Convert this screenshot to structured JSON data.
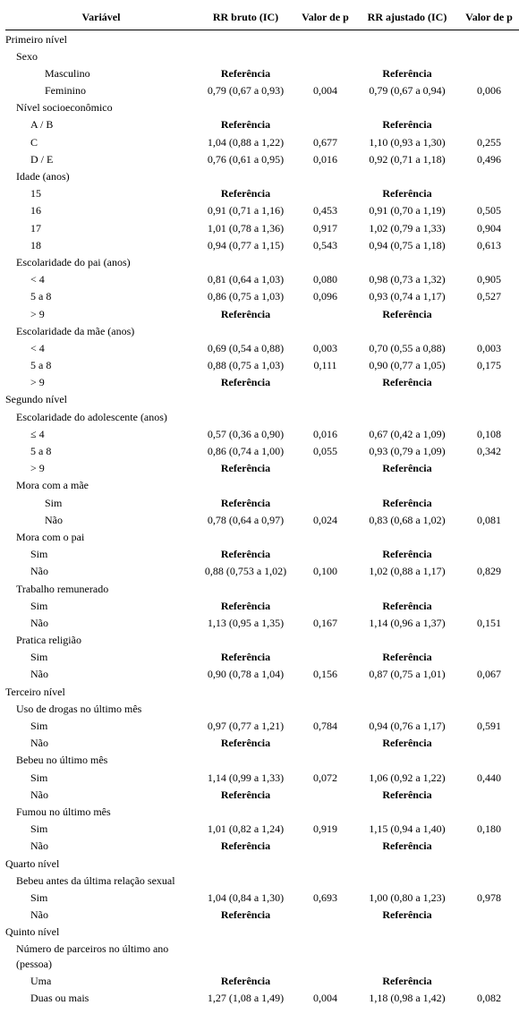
{
  "headers": {
    "variable": "Variável",
    "rr_crude": "RR bruto (IC)",
    "p_crude": "Valor de p",
    "rr_adj": "RR ajustado (IC)",
    "p_adj": "Valor de p"
  },
  "ref_label": "Referência",
  "rows": [
    {
      "type": "section",
      "indent": 0,
      "label": "Primeiro nível"
    },
    {
      "type": "group",
      "indent": 1,
      "label": "Sexo"
    },
    {
      "type": "ref",
      "indent": 3,
      "label": "Masculino"
    },
    {
      "type": "data",
      "indent": 3,
      "label": "Feminino",
      "rr_c": "0,79 (0,67 a 0,93)",
      "p_c": "0,004",
      "rr_a": "0,79 (0,67 a 0,94)",
      "p_a": "0,006"
    },
    {
      "type": "group",
      "indent": 1,
      "label": "Nível socioeconômico"
    },
    {
      "type": "ref",
      "indent": 2,
      "label": "A / B"
    },
    {
      "type": "data",
      "indent": 2,
      "label": "C",
      "rr_c": "1,04 (0,88 a 1,22)",
      "p_c": "0,677",
      "rr_a": "1,10 (0,93 a 1,30)",
      "p_a": "0,255"
    },
    {
      "type": "data",
      "indent": 2,
      "label": "D / E",
      "rr_c": "0,76 (0,61 a 0,95)",
      "p_c": "0,016",
      "rr_a": "0,92 (0,71 a 1,18)",
      "p_a": "0,496"
    },
    {
      "type": "group",
      "indent": 1,
      "label": "Idade (anos)"
    },
    {
      "type": "ref",
      "indent": 2,
      "label": "15"
    },
    {
      "type": "data",
      "indent": 2,
      "label": "16",
      "rr_c": "0,91 (0,71 a 1,16)",
      "p_c": "0,453",
      "rr_a": "0,91 (0,70 a 1,19)",
      "p_a": "0,505"
    },
    {
      "type": "data",
      "indent": 2,
      "label": "17",
      "rr_c": "1,01 (0,78 a 1,36)",
      "p_c": "0,917",
      "rr_a": "1,02 (0,79 a 1,33)",
      "p_a": "0,904"
    },
    {
      "type": "data",
      "indent": 2,
      "label": "18",
      "rr_c": "0,94 (0,77 a 1,15)",
      "p_c": "0,543",
      "rr_a": "0,94 (0,75 a 1,18)",
      "p_a": "0,613"
    },
    {
      "type": "group",
      "indent": 1,
      "label": "Escolaridade do pai (anos)"
    },
    {
      "type": "data",
      "indent": 2,
      "label": "< 4",
      "rr_c": "0,81 (0,64 a 1,03)",
      "p_c": "0,080",
      "rr_a": "0,98 (0,73 a 1,32)",
      "p_a": "0,905"
    },
    {
      "type": "data",
      "indent": 2,
      "label": "5 a 8",
      "rr_c": "0,86 (0,75 a 1,03)",
      "p_c": "0,096",
      "rr_a": "0,93 (0,74 a 1,17)",
      "p_a": "0,527"
    },
    {
      "type": "ref",
      "indent": 2,
      "label": "> 9"
    },
    {
      "type": "group",
      "indent": 1,
      "label": "Escolaridade da mãe (anos)"
    },
    {
      "type": "data",
      "indent": 2,
      "label": "< 4",
      "rr_c": "0,69 (0,54 a 0,88)",
      "p_c": "0,003",
      "rr_a": "0,70 (0,55 a 0,88)",
      "p_a": "0,003"
    },
    {
      "type": "data",
      "indent": 2,
      "label": "5 a 8",
      "rr_c": "0,88 (0,75 a 1,03)",
      "p_c": "0,111",
      "rr_a": "0,90 (0,77 a 1,05)",
      "p_a": "0,175"
    },
    {
      "type": "ref",
      "indent": 2,
      "label": "> 9"
    },
    {
      "type": "section",
      "indent": 0,
      "label": "Segundo nível"
    },
    {
      "type": "group",
      "indent": 1,
      "label": "Escolaridade do adolescente (anos)"
    },
    {
      "type": "data",
      "indent": 2,
      "label": "≤ 4",
      "rr_c": "0,57 (0,36 a 0,90)",
      "p_c": "0,016",
      "rr_a": "0,67 (0,42 a 1,09)",
      "p_a": "0,108"
    },
    {
      "type": "data",
      "indent": 2,
      "label": "5 a 8",
      "rr_c": "0,86 (0,74 a 1,00)",
      "p_c": "0,055",
      "rr_a": "0,93 (0,79 a 1,09)",
      "p_a": "0,342"
    },
    {
      "type": "ref",
      "indent": 2,
      "label": "> 9"
    },
    {
      "type": "group",
      "indent": 1,
      "label": "Mora com a mãe"
    },
    {
      "type": "ref",
      "indent": 3,
      "label": "Sim"
    },
    {
      "type": "data",
      "indent": 3,
      "label": "Não",
      "rr_c": "0,78 (0,64 a 0,97)",
      "p_c": "0,024",
      "rr_a": "0,83 (0,68 a 1,02)",
      "p_a": "0,081"
    },
    {
      "type": "group",
      "indent": 1,
      "label": "Mora com o pai"
    },
    {
      "type": "ref",
      "indent": 2,
      "label": "Sim"
    },
    {
      "type": "data",
      "indent": 2,
      "label": "Não",
      "rr_c": "0,88 (0,753 a 1,02)",
      "p_c": "0,100",
      "rr_a": "1,02 (0,88 a 1,17)",
      "p_a": "0,829"
    },
    {
      "type": "group",
      "indent": 1,
      "label": "Trabalho remunerado"
    },
    {
      "type": "ref",
      "indent": 2,
      "label": "Sim"
    },
    {
      "type": "data",
      "indent": 2,
      "label": "Não",
      "rr_c": "1,13 (0,95 a 1,35)",
      "p_c": "0,167",
      "rr_a": "1,14 (0,96 a 1,37)",
      "p_a": "0,151"
    },
    {
      "type": "group",
      "indent": 1,
      "label": "Pratica religião"
    },
    {
      "type": "ref",
      "indent": 2,
      "label": "Sim"
    },
    {
      "type": "data",
      "indent": 2,
      "label": "Não",
      "rr_c": "0,90 (0,78 a 1,04)",
      "p_c": "0,156",
      "rr_a": "0,87 (0,75 a 1,01)",
      "p_a": "0,067"
    },
    {
      "type": "section",
      "indent": 0,
      "label": "Terceiro nível"
    },
    {
      "type": "group",
      "indent": 1,
      "label": "Uso de drogas no último mês"
    },
    {
      "type": "data",
      "indent": 2,
      "label": "Sim",
      "rr_c": "0,97 (0,77 a 1,21)",
      "p_c": "0,784",
      "rr_a": "0,94 (0,76 a 1,17)",
      "p_a": "0,591"
    },
    {
      "type": "ref",
      "indent": 2,
      "label": "Não"
    },
    {
      "type": "group",
      "indent": 1,
      "label": "Bebeu no último mês"
    },
    {
      "type": "data",
      "indent": 2,
      "label": "Sim",
      "rr_c": "1,14 (0,99 a 1,33)",
      "p_c": "0,072",
      "rr_a": "1,06 (0,92 a 1,22)",
      "p_a": "0,440"
    },
    {
      "type": "ref",
      "indent": 2,
      "label": "Não"
    },
    {
      "type": "group",
      "indent": 1,
      "label": "Fumou no último mês"
    },
    {
      "type": "data",
      "indent": 2,
      "label": "Sim",
      "rr_c": "1,01 (0,82 a 1,24)",
      "p_c": "0,919",
      "rr_a": "1,15 (0,94 a 1,40)",
      "p_a": "0,180"
    },
    {
      "type": "ref",
      "indent": 2,
      "label": "Não"
    },
    {
      "type": "section",
      "indent": 0,
      "label": "Quarto nível"
    },
    {
      "type": "group",
      "indent": 1,
      "label": "Bebeu antes da última relação sexual"
    },
    {
      "type": "data",
      "indent": 2,
      "label": "Sim",
      "rr_c": "1,04 (0,84 a 1,30)",
      "p_c": "0,693",
      "rr_a": "1,00 (0,80 a 1,23)",
      "p_a": "0,978"
    },
    {
      "type": "ref",
      "indent": 2,
      "label": "Não"
    },
    {
      "type": "section",
      "indent": 0,
      "label": "Quinto nível"
    },
    {
      "type": "group",
      "indent": 1,
      "label": "Número de parceiros no último ano (pessoa)"
    },
    {
      "type": "ref",
      "indent": 2,
      "label": "Uma"
    },
    {
      "type": "data",
      "indent": 2,
      "label": "Duas ou mais",
      "rr_c": "1,27 (1,08 a 1,49)",
      "p_c": "0,004",
      "rr_a": "1,18 (0,98 a 1,42)",
      "p_a": "0,082"
    }
  ],
  "style": {
    "font_family": "Times New Roman",
    "font_size_pt": 9,
    "text_color": "#000000",
    "background_color": "#ffffff",
    "header_border_color": "#000000"
  }
}
